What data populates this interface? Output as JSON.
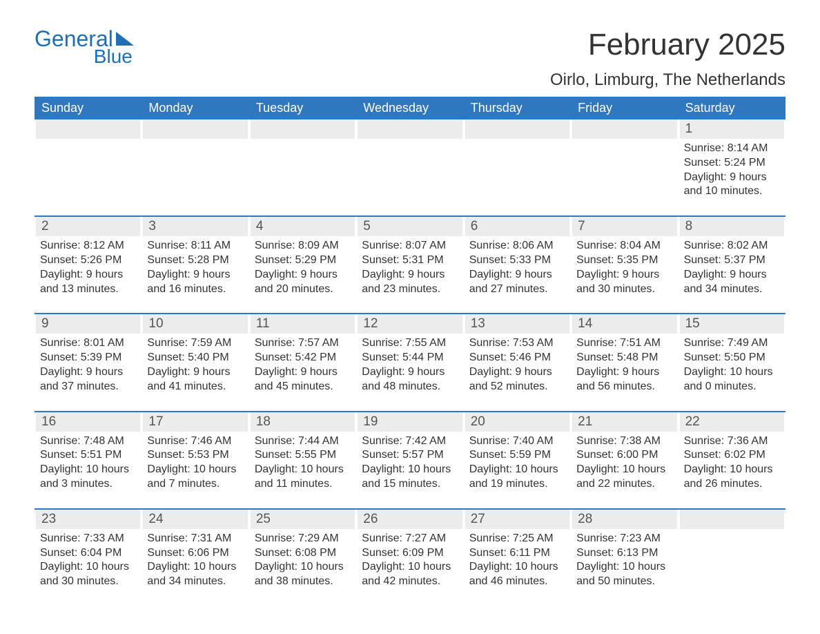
{
  "logo": {
    "word1": "General",
    "word2": "Blue"
  },
  "title": "February 2025",
  "location": "Oirlo, Limburg, The Netherlands",
  "colors": {
    "header_bg": "#2f78bf",
    "header_text": "#ffffff",
    "daynum_bg": "#ececec",
    "row_divider": "#2f78bf",
    "text": "#333333",
    "logo": "#1f6fb2",
    "background": "#ffffff"
  },
  "typography": {
    "title_fontsize": 44,
    "location_fontsize": 24,
    "weekday_fontsize": 18,
    "daynum_fontsize": 19,
    "body_fontsize": 16
  },
  "layout": {
    "columns": 7,
    "rows": 5,
    "first_day_column_index": 6
  },
  "weekdays": [
    "Sunday",
    "Monday",
    "Tuesday",
    "Wednesday",
    "Thursday",
    "Friday",
    "Saturday"
  ],
  "days": [
    {
      "n": 1,
      "sunrise": "8:14 AM",
      "sunset": "5:24 PM",
      "daylight": "9 hours and 10 minutes."
    },
    {
      "n": 2,
      "sunrise": "8:12 AM",
      "sunset": "5:26 PM",
      "daylight": "9 hours and 13 minutes."
    },
    {
      "n": 3,
      "sunrise": "8:11 AM",
      "sunset": "5:28 PM",
      "daylight": "9 hours and 16 minutes."
    },
    {
      "n": 4,
      "sunrise": "8:09 AM",
      "sunset": "5:29 PM",
      "daylight": "9 hours and 20 minutes."
    },
    {
      "n": 5,
      "sunrise": "8:07 AM",
      "sunset": "5:31 PM",
      "daylight": "9 hours and 23 minutes."
    },
    {
      "n": 6,
      "sunrise": "8:06 AM",
      "sunset": "5:33 PM",
      "daylight": "9 hours and 27 minutes."
    },
    {
      "n": 7,
      "sunrise": "8:04 AM",
      "sunset": "5:35 PM",
      "daylight": "9 hours and 30 minutes."
    },
    {
      "n": 8,
      "sunrise": "8:02 AM",
      "sunset": "5:37 PM",
      "daylight": "9 hours and 34 minutes."
    },
    {
      "n": 9,
      "sunrise": "8:01 AM",
      "sunset": "5:39 PM",
      "daylight": "9 hours and 37 minutes."
    },
    {
      "n": 10,
      "sunrise": "7:59 AM",
      "sunset": "5:40 PM",
      "daylight": "9 hours and 41 minutes."
    },
    {
      "n": 11,
      "sunrise": "7:57 AM",
      "sunset": "5:42 PM",
      "daylight": "9 hours and 45 minutes."
    },
    {
      "n": 12,
      "sunrise": "7:55 AM",
      "sunset": "5:44 PM",
      "daylight": "9 hours and 48 minutes."
    },
    {
      "n": 13,
      "sunrise": "7:53 AM",
      "sunset": "5:46 PM",
      "daylight": "9 hours and 52 minutes."
    },
    {
      "n": 14,
      "sunrise": "7:51 AM",
      "sunset": "5:48 PM",
      "daylight": "9 hours and 56 minutes."
    },
    {
      "n": 15,
      "sunrise": "7:49 AM",
      "sunset": "5:50 PM",
      "daylight": "10 hours and 0 minutes."
    },
    {
      "n": 16,
      "sunrise": "7:48 AM",
      "sunset": "5:51 PM",
      "daylight": "10 hours and 3 minutes."
    },
    {
      "n": 17,
      "sunrise": "7:46 AM",
      "sunset": "5:53 PM",
      "daylight": "10 hours and 7 minutes."
    },
    {
      "n": 18,
      "sunrise": "7:44 AM",
      "sunset": "5:55 PM",
      "daylight": "10 hours and 11 minutes."
    },
    {
      "n": 19,
      "sunrise": "7:42 AM",
      "sunset": "5:57 PM",
      "daylight": "10 hours and 15 minutes."
    },
    {
      "n": 20,
      "sunrise": "7:40 AM",
      "sunset": "5:59 PM",
      "daylight": "10 hours and 19 minutes."
    },
    {
      "n": 21,
      "sunrise": "7:38 AM",
      "sunset": "6:00 PM",
      "daylight": "10 hours and 22 minutes."
    },
    {
      "n": 22,
      "sunrise": "7:36 AM",
      "sunset": "6:02 PM",
      "daylight": "10 hours and 26 minutes."
    },
    {
      "n": 23,
      "sunrise": "7:33 AM",
      "sunset": "6:04 PM",
      "daylight": "10 hours and 30 minutes."
    },
    {
      "n": 24,
      "sunrise": "7:31 AM",
      "sunset": "6:06 PM",
      "daylight": "10 hours and 34 minutes."
    },
    {
      "n": 25,
      "sunrise": "7:29 AM",
      "sunset": "6:08 PM",
      "daylight": "10 hours and 38 minutes."
    },
    {
      "n": 26,
      "sunrise": "7:27 AM",
      "sunset": "6:09 PM",
      "daylight": "10 hours and 42 minutes."
    },
    {
      "n": 27,
      "sunrise": "7:25 AM",
      "sunset": "6:11 PM",
      "daylight": "10 hours and 46 minutes."
    },
    {
      "n": 28,
      "sunrise": "7:23 AM",
      "sunset": "6:13 PM",
      "daylight": "10 hours and 50 minutes."
    }
  ],
  "labels": {
    "sunrise": "Sunrise:",
    "sunset": "Sunset:",
    "daylight": "Daylight:"
  }
}
